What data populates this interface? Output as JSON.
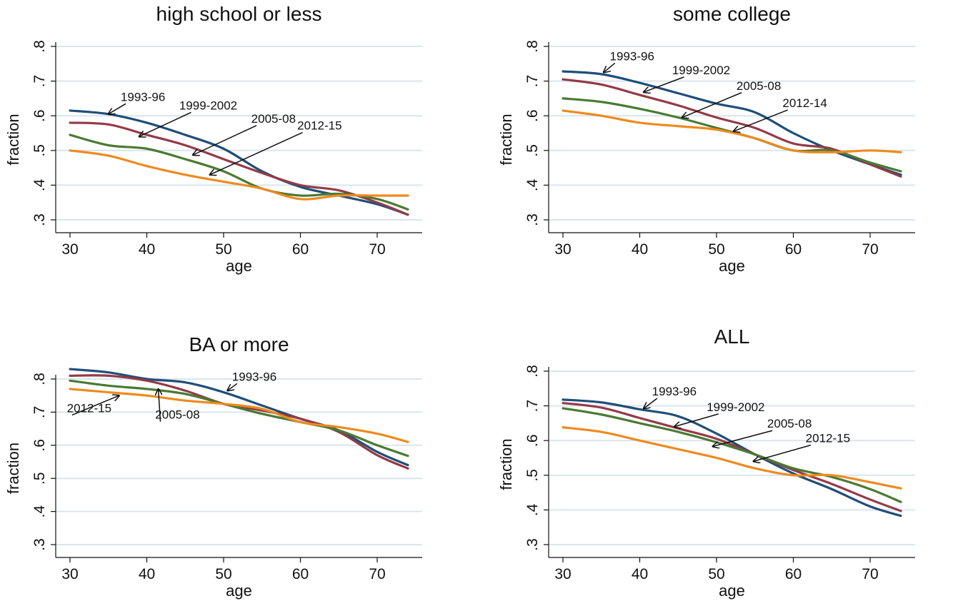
{
  "chart_data": [
    {
      "type": "line",
      "title": "high school or less",
      "xlabel": "age",
      "ylabel": "fraction",
      "xlim": [
        28,
        75.5
      ],
      "ylim": [
        0.28,
        0.82
      ],
      "xticks": [
        30,
        40,
        50,
        60,
        70
      ],
      "yticks": [
        0.3,
        0.4,
        0.5,
        0.6,
        0.7,
        0.8
      ],
      "ytick_labels": [
        ".3",
        ".4",
        ".5",
        ".6",
        ".7",
        ".8"
      ],
      "grid": true,
      "x": [
        30,
        35,
        40,
        45,
        50,
        55,
        60,
        65,
        70,
        74
      ],
      "series": [
        {
          "name": "1993-96",
          "color": "#1f4e79",
          "values": [
            0.615,
            0.605,
            0.58,
            0.545,
            0.505,
            0.44,
            0.395,
            0.37,
            0.345,
            0.315
          ]
        },
        {
          "name": "1999-2002",
          "color": "#943a47",
          "values": [
            0.58,
            0.575,
            0.545,
            0.515,
            0.475,
            0.435,
            0.4,
            0.385,
            0.35,
            0.315
          ]
        },
        {
          "name": "2005-08",
          "color": "#4a7a32",
          "values": [
            0.545,
            0.515,
            0.505,
            0.475,
            0.44,
            0.39,
            0.37,
            0.375,
            0.36,
            0.33
          ]
        },
        {
          "name": "2012-15",
          "color": "#ee8a1e",
          "values": [
            0.5,
            0.485,
            0.455,
            0.43,
            0.41,
            0.39,
            0.36,
            0.37,
            0.37,
            0.37
          ]
        }
      ],
      "annotations": [
        {
          "text": "1993-96",
          "x": 39.5,
          "y": 0.643,
          "ax": 35,
          "ay": 0.605
        },
        {
          "text": "1999-2002",
          "x": 48,
          "y": 0.618,
          "ax": 39,
          "ay": 0.54
        },
        {
          "text": "2005-08",
          "x": 56.5,
          "y": 0.58,
          "ax": 46,
          "ay": 0.487
        },
        {
          "text": "2012-15",
          "x": 62.5,
          "y": 0.56,
          "ax": 48.2,
          "ay": 0.43
        }
      ]
    },
    {
      "type": "line",
      "title": "some college",
      "xlabel": "age",
      "ylabel": "fraction",
      "xlim": [
        28,
        75.5
      ],
      "ylim": [
        0.28,
        0.82
      ],
      "xticks": [
        30,
        40,
        50,
        60,
        70
      ],
      "yticks": [
        0.3,
        0.4,
        0.5,
        0.6,
        0.7,
        0.8
      ],
      "ytick_labels": [
        ".3",
        ".4",
        ".5",
        ".6",
        ".7",
        ".8"
      ],
      "grid": true,
      "x": [
        30,
        35,
        40,
        45,
        50,
        55,
        60,
        65,
        70,
        74
      ],
      "series": [
        {
          "name": "1993-96",
          "color": "#1f4e79",
          "values": [
            0.728,
            0.72,
            0.695,
            0.665,
            0.635,
            0.61,
            0.55,
            0.5,
            0.46,
            0.43
          ]
        },
        {
          "name": "1999-2002",
          "color": "#943a47",
          "values": [
            0.705,
            0.69,
            0.66,
            0.63,
            0.595,
            0.565,
            0.52,
            0.505,
            0.46,
            0.425
          ]
        },
        {
          "name": "2005-08",
          "color": "#4a7a32",
          "values": [
            0.65,
            0.64,
            0.62,
            0.595,
            0.565,
            0.535,
            0.5,
            0.5,
            0.465,
            0.44
          ]
        },
        {
          "name": "2012-14",
          "color": "#ee8a1e",
          "values": [
            0.615,
            0.6,
            0.58,
            0.57,
            0.56,
            0.535,
            0.5,
            0.495,
            0.5,
            0.495
          ]
        }
      ],
      "annotations": [
        {
          "text": "1993-96",
          "x": 39,
          "y": 0.76,
          "ax": 35.3,
          "ay": 0.725
        },
        {
          "text": "1999-2002",
          "x": 48,
          "y": 0.72,
          "ax": 40.5,
          "ay": 0.668
        },
        {
          "text": "2005-08",
          "x": 55.5,
          "y": 0.675,
          "ax": 45.5,
          "ay": 0.595
        },
        {
          "text": "2012-14",
          "x": 61.5,
          "y": 0.625,
          "ax": 52.2,
          "ay": 0.555
        }
      ]
    },
    {
      "type": "line",
      "title": "BA or more",
      "xlabel": "age",
      "ylabel": "fraction",
      "xlim": [
        28,
        75.5
      ],
      "ylim": [
        0.28,
        0.85
      ],
      "xticks": [
        30,
        40,
        50,
        60,
        70
      ],
      "yticks": [
        0.3,
        0.4,
        0.5,
        0.6,
        0.7,
        0.8
      ],
      "ytick_labels": [
        ".3",
        ".4",
        ".5",
        ".6",
        ".7",
        ".8"
      ],
      "grid": true,
      "x": [
        30,
        35,
        40,
        45,
        50,
        55,
        60,
        65,
        70,
        74
      ],
      "series": [
        {
          "name": "1993-96",
          "color": "#1f4e79",
          "values": [
            0.83,
            0.82,
            0.8,
            0.79,
            0.76,
            0.72,
            0.68,
            0.645,
            0.58,
            0.54
          ]
        },
        {
          "name": "1999-2002",
          "color": "#943a47",
          "values": [
            0.81,
            0.81,
            0.795,
            0.765,
            0.725,
            0.705,
            0.68,
            0.64,
            0.57,
            0.53
          ]
        },
        {
          "name": "2005-08",
          "color": "#4a7a32",
          "values": [
            0.795,
            0.78,
            0.77,
            0.755,
            0.725,
            0.695,
            0.67,
            0.645,
            0.6,
            0.568
          ]
        },
        {
          "name": "2012-15",
          "color": "#ee8a1e",
          "values": [
            0.77,
            0.76,
            0.75,
            0.735,
            0.725,
            0.71,
            0.67,
            0.655,
            0.635,
            0.61
          ]
        }
      ],
      "annotations": [
        {
          "text": "1993-96",
          "x": 54,
          "y": 0.795,
          "ax": 50.5,
          "ay": 0.765
        },
        {
          "text": "2012-15",
          "x": 32.5,
          "y": 0.7,
          "ax": 36.4,
          "ay": 0.75
        },
        {
          "text": "2005-08",
          "x": 44,
          "y": 0.68,
          "ax": 41.5,
          "ay": 0.77
        }
      ]
    },
    {
      "type": "line",
      "title": "ALL",
      "xlabel": "age",
      "ylabel": "fraction",
      "xlim": [
        28,
        75.5
      ],
      "ylim": [
        0.28,
        0.82
      ],
      "xticks": [
        30,
        40,
        50,
        60,
        70
      ],
      "yticks": [
        0.3,
        0.4,
        0.5,
        0.6,
        0.7,
        0.8
      ],
      "ytick_labels": [
        ".3",
        ".4",
        ".5",
        ".6",
        ".7",
        ".8"
      ],
      "grid": true,
      "x": [
        30,
        35,
        40,
        45,
        50,
        55,
        60,
        65,
        70,
        74
      ],
      "series": [
        {
          "name": "1993-96",
          "color": "#1f4e79",
          "values": [
            0.718,
            0.71,
            0.69,
            0.67,
            0.62,
            0.56,
            0.505,
            0.46,
            0.41,
            0.383
          ]
        },
        {
          "name": "1999-2002",
          "color": "#943a47",
          "values": [
            0.708,
            0.695,
            0.665,
            0.635,
            0.605,
            0.56,
            0.515,
            0.475,
            0.43,
            0.397
          ]
        },
        {
          "name": "2005-08",
          "color": "#4a7a32",
          "values": [
            0.693,
            0.675,
            0.65,
            0.625,
            0.595,
            0.56,
            0.52,
            0.495,
            0.46,
            0.423
          ]
        },
        {
          "name": "2012-15",
          "color": "#ee8a1e",
          "values": [
            0.638,
            0.625,
            0.6,
            0.575,
            0.55,
            0.52,
            0.5,
            0.5,
            0.48,
            0.462
          ]
        }
      ],
      "annotations": [
        {
          "text": "1993-96",
          "x": 44.5,
          "y": 0.73,
          "ax": 40.5,
          "ay": 0.692
        },
        {
          "text": "1999-2002",
          "x": 52.5,
          "y": 0.685,
          "ax": 44.5,
          "ay": 0.64
        },
        {
          "text": "2005-08",
          "x": 59.5,
          "y": 0.637,
          "ax": 49.5,
          "ay": 0.583
        },
        {
          "text": "2012-15",
          "x": 64.5,
          "y": 0.595,
          "ax": 54.8,
          "ay": 0.54
        }
      ]
    }
  ]
}
